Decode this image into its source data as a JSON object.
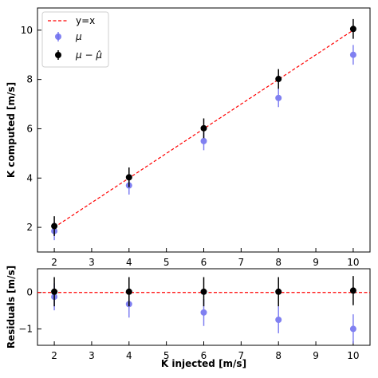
{
  "chart_data": [
    {
      "type": "scatter",
      "xlabel": "",
      "ylabel": "K computed [m/s]",
      "xlim": [
        1.55,
        10.45
      ],
      "ylim": [
        1.0,
        10.9
      ],
      "xticks": [
        "2",
        "3",
        "4",
        "5",
        "6",
        "7",
        "8",
        "9",
        "10"
      ],
      "yticks": [
        "2",
        "4",
        "6",
        "8",
        "10"
      ],
      "legend_position": "top-left",
      "reference_line": {
        "name": "y=x",
        "color": "#ff0000",
        "style": "dashed"
      },
      "series": [
        {
          "name": "μ",
          "color": "#6b6bef",
          "x": [
            2,
            4,
            6,
            8,
            10
          ],
          "y": [
            1.85,
            3.7,
            5.5,
            7.25,
            9.0
          ],
          "err": [
            0.37,
            0.37,
            0.37,
            0.37,
            0.4
          ]
        },
        {
          "name": "μ − μ̂",
          "color": "#000000",
          "x": [
            2,
            4,
            6,
            8,
            10
          ],
          "y": [
            2.05,
            4.03,
            6.02,
            8.02,
            10.05
          ],
          "err": [
            0.4,
            0.4,
            0.4,
            0.4,
            0.4
          ]
        }
      ]
    },
    {
      "type": "scatter",
      "xlabel": "K injected [m/s]",
      "ylabel": "Residuals [m/s]",
      "xlim": [
        1.55,
        10.45
      ],
      "ylim": [
        -1.45,
        0.65
      ],
      "xticks": [
        "2",
        "3",
        "4",
        "5",
        "6",
        "7",
        "8",
        "9",
        "10"
      ],
      "yticks": [
        "−1",
        "0"
      ],
      "reference_line": {
        "value": 0,
        "color": "#ff0000",
        "style": "dashed"
      },
      "series": [
        {
          "name": "μ",
          "color": "#6b6bef",
          "x": [
            2,
            4,
            6,
            8,
            10
          ],
          "y": [
            -0.12,
            -0.32,
            -0.55,
            -0.75,
            -1.0
          ],
          "err": [
            0.37,
            0.37,
            0.37,
            0.37,
            0.4
          ]
        },
        {
          "name": "μ − μ̂",
          "color": "#000000",
          "x": [
            2,
            4,
            6,
            8,
            10
          ],
          "y": [
            0.02,
            0.02,
            0.02,
            0.02,
            0.05
          ],
          "err": [
            0.4,
            0.4,
            0.4,
            0.4,
            0.4
          ]
        }
      ]
    }
  ]
}
